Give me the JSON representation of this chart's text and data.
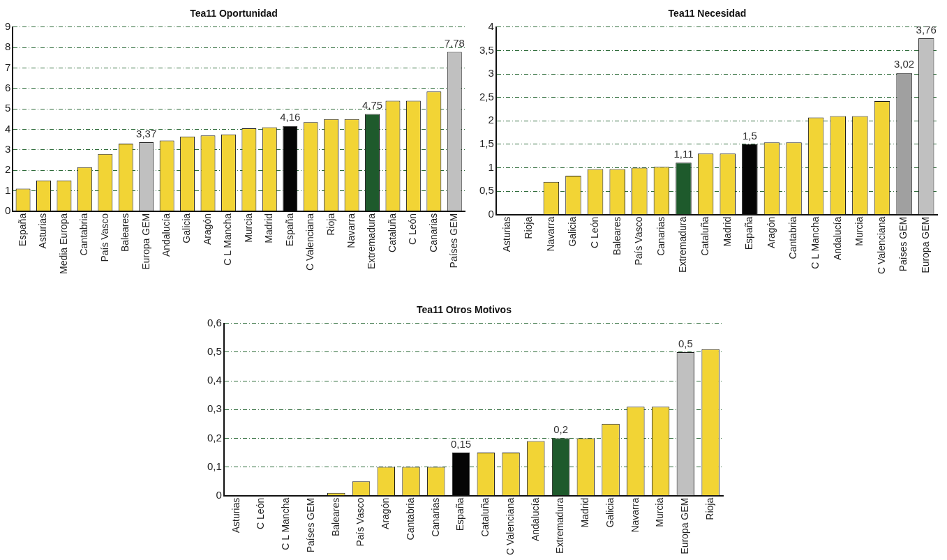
{
  "chart_data": [
    {
      "type": "bar",
      "title": "Tea11 Oportunidad",
      "categories": [
        "España",
        "Asturias",
        "Media Europa",
        "Cantabria",
        "País Vasco",
        "Baleares",
        "Europa GEM",
        "Andalucía",
        "Galicia",
        "Aragón",
        "C L Mancha",
        "Murcia",
        "Madrid",
        "España",
        "C Valenciana",
        "Rioja",
        "Navarra",
        "Extremadura",
        "Cataluña",
        "C León",
        "Canarias",
        "Países GEM"
      ],
      "values": [
        1.1,
        1.5,
        1.5,
        2.15,
        2.8,
        3.3,
        3.37,
        3.45,
        3.65,
        3.7,
        3.75,
        4.05,
        4.1,
        4.16,
        4.35,
        4.5,
        4.5,
        4.75,
        5.4,
        5.4,
        5.85,
        7.78
      ],
      "colors": [
        "#f2d435",
        "#f2d435",
        "#f2d435",
        "#f2d435",
        "#f2d435",
        "#f2d435",
        "#c0c0c0",
        "#f2d435",
        "#f2d435",
        "#f2d435",
        "#f2d435",
        "#f2d435",
        "#f2d435",
        "#050505",
        "#f2d435",
        "#f2d435",
        "#f2d435",
        "#1e5a2c",
        "#f2d435",
        "#f2d435",
        "#f2d435",
        "#c0c0c0"
      ],
      "value_labels": [
        null,
        null,
        null,
        null,
        null,
        null,
        "3,37",
        null,
        null,
        null,
        null,
        null,
        null,
        "4,16",
        null,
        null,
        null,
        "4,75",
        null,
        null,
        null,
        "7,78"
      ],
      "ylim": [
        0,
        9
      ],
      "yticks": [
        0,
        1,
        2,
        3,
        4,
        5,
        6,
        7,
        8,
        9
      ],
      "grid": "y"
    },
    {
      "type": "bar",
      "title": "Tea11 Necesidad",
      "categories": [
        "Asturias",
        "Rioja",
        "Navarra",
        "Galicia",
        "C León",
        "Baleares",
        "País Vasco",
        "Canarias",
        "Extremadura",
        "Cataluña",
        "Madrid",
        "España",
        "Aragón",
        "Cantabria",
        "C L Mancha",
        "Andalucía",
        "Murcia",
        "C Valenciana",
        "Países GEM",
        "Europa GEM"
      ],
      "values": [
        0,
        0,
        0.7,
        0.83,
        0.97,
        0.97,
        1.0,
        1.02,
        1.11,
        1.3,
        1.3,
        1.5,
        1.54,
        1.54,
        2.07,
        2.1,
        2.1,
        2.42,
        3.02,
        3.76
      ],
      "colors": [
        "#f2d435",
        "#f2d435",
        "#f2d435",
        "#f2d435",
        "#f2d435",
        "#f2d435",
        "#f2d435",
        "#f2d435",
        "#1e5a2c",
        "#f2d435",
        "#f2d435",
        "#050505",
        "#f2d435",
        "#f2d435",
        "#f2d435",
        "#f2d435",
        "#f2d435",
        "#f2d435",
        "#a0a0a0",
        "#c0c0c0"
      ],
      "value_labels": [
        null,
        null,
        null,
        null,
        null,
        null,
        null,
        null,
        "1,11",
        null,
        null,
        "1,5",
        null,
        null,
        null,
        null,
        null,
        null,
        "3,02",
        "3,76"
      ],
      "ylim": [
        0,
        4
      ],
      "yticks": [
        0,
        {
          "value": 0.5,
          "label": "0,5"
        },
        1,
        {
          "value": 1.5,
          "label": "1,5"
        },
        2,
        {
          "value": 2.5,
          "label": "2,5"
        },
        3,
        {
          "value": 3.5,
          "label": "3,5"
        },
        4
      ],
      "grid": "y"
    },
    {
      "type": "bar",
      "title": "Tea11 Otros Motivos",
      "categories": [
        "Asturias",
        "C León",
        "C L Mancha",
        "Países GEM",
        "Baleares",
        "País Vasco",
        "Aragón",
        "Cantabria",
        "Canarias",
        "España",
        "Cataluña",
        "C Valenciana",
        "Andalucía",
        "Extremadura",
        "Madrid",
        "Galicia",
        "Navarra",
        "Murcia",
        "Europa GEM",
        "Rioja"
      ],
      "values": [
        0,
        0,
        0,
        0,
        0.01,
        0.05,
        0.1,
        0.1,
        0.1,
        0.15,
        0.15,
        0.15,
        0.19,
        0.2,
        0.2,
        0.25,
        0.31,
        0.31,
        0.5,
        0.51
      ],
      "colors": [
        "#f2d435",
        "#f2d435",
        "#f2d435",
        "#c0c0c0",
        "#f2d435",
        "#f2d435",
        "#f2d435",
        "#f2d435",
        "#f2d435",
        "#050505",
        "#f2d435",
        "#f2d435",
        "#f2d435",
        "#1e5a2c",
        "#f2d435",
        "#f2d435",
        "#f2d435",
        "#f2d435",
        "#c0c0c0",
        "#f2d435"
      ],
      "value_labels": [
        null,
        null,
        null,
        null,
        null,
        null,
        null,
        null,
        null,
        "0,15",
        null,
        null,
        null,
        "0,2",
        null,
        null,
        null,
        null,
        "0,5",
        null
      ],
      "ylim": [
        0,
        0.6
      ],
      "yticks": [
        0,
        {
          "value": 0.1,
          "label": "0,1"
        },
        {
          "value": 0.2,
          "label": "0,2"
        },
        {
          "value": 0.3,
          "label": "0,3"
        },
        {
          "value": 0.4,
          "label": "0,4"
        },
        {
          "value": 0.5,
          "label": "0,5"
        },
        {
          "value": 0.6,
          "label": "0,6"
        }
      ],
      "grid": "y"
    }
  ]
}
